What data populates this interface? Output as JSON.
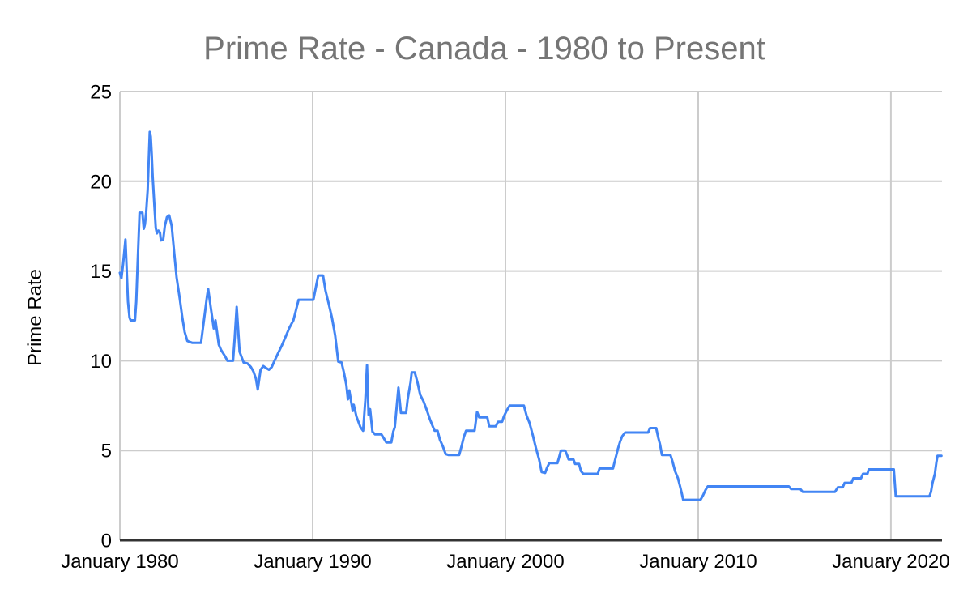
{
  "page": {
    "background": "#ffffff"
  },
  "colors": {
    "background": "#ffffff",
    "grid": "#cccccc",
    "axis": "#333333",
    "title_text": "#757575",
    "tick_text": "#000000",
    "line": "#4285f4"
  },
  "chart_data": {
    "type": "line",
    "title": "Prime Rate - Canada - 1980 to Present",
    "xlabel": "",
    "ylabel": "Prime Rate",
    "legend": "none",
    "grid": true,
    "xlim": [
      1980,
      2022.65
    ],
    "ylim": [
      0,
      25
    ],
    "x_ticks": [
      {
        "value": 1980,
        "label": "January 1980"
      },
      {
        "value": 1990,
        "label": "January 1990"
      },
      {
        "value": 2000,
        "label": "January 2000"
      },
      {
        "value": 2010,
        "label": "January 2010"
      },
      {
        "value": 2020,
        "label": "January 2020"
      }
    ],
    "y_ticks": [
      {
        "value": 0,
        "label": "0"
      },
      {
        "value": 5,
        "label": "5"
      },
      {
        "value": 10,
        "label": "10"
      },
      {
        "value": 15,
        "label": "15"
      },
      {
        "value": 20,
        "label": "20"
      },
      {
        "value": 25,
        "label": "25"
      }
    ],
    "series": [
      {
        "name": "Prime Rate",
        "color": "#4285f4",
        "points": [
          [
            1980.0,
            14.9
          ],
          [
            1980.08,
            14.6
          ],
          [
            1980.17,
            15.4
          ],
          [
            1980.29,
            16.75
          ],
          [
            1980.42,
            13.3
          ],
          [
            1980.5,
            12.4
          ],
          [
            1980.56,
            12.25
          ],
          [
            1980.78,
            12.25
          ],
          [
            1980.85,
            13.3
          ],
          [
            1980.92,
            15.4
          ],
          [
            1981.02,
            18.25
          ],
          [
            1981.17,
            18.25
          ],
          [
            1981.24,
            17.35
          ],
          [
            1981.3,
            17.6
          ],
          [
            1981.36,
            18.25
          ],
          [
            1981.44,
            19.5
          ],
          [
            1981.49,
            21.0
          ],
          [
            1981.55,
            22.75
          ],
          [
            1981.6,
            22.5
          ],
          [
            1981.65,
            21.5
          ],
          [
            1981.7,
            20.25
          ],
          [
            1981.78,
            18.8
          ],
          [
            1981.86,
            17.4
          ],
          [
            1981.92,
            17.1
          ],
          [
            1982.0,
            17.25
          ],
          [
            1982.08,
            17.15
          ],
          [
            1982.13,
            16.7
          ],
          [
            1982.25,
            16.75
          ],
          [
            1982.33,
            17.5
          ],
          [
            1982.44,
            18.0
          ],
          [
            1982.56,
            18.1
          ],
          [
            1982.69,
            17.5
          ],
          [
            1982.82,
            16.0
          ],
          [
            1982.94,
            14.65
          ],
          [
            1983.1,
            13.5
          ],
          [
            1983.24,
            12.4
          ],
          [
            1983.36,
            11.6
          ],
          [
            1983.5,
            11.1
          ],
          [
            1983.75,
            11.0
          ],
          [
            1984.21,
            11.0
          ],
          [
            1984.38,
            12.4
          ],
          [
            1984.52,
            13.6
          ],
          [
            1984.58,
            14.0
          ],
          [
            1984.71,
            13.0
          ],
          [
            1984.87,
            11.8
          ],
          [
            1984.96,
            12.25
          ],
          [
            1985.13,
            10.9
          ],
          [
            1985.25,
            10.6
          ],
          [
            1985.46,
            10.25
          ],
          [
            1985.58,
            10.0
          ],
          [
            1985.87,
            10.0
          ],
          [
            1985.96,
            11.3
          ],
          [
            1986.06,
            13.0
          ],
          [
            1986.21,
            10.5
          ],
          [
            1986.42,
            9.9
          ],
          [
            1986.62,
            9.85
          ],
          [
            1986.8,
            9.65
          ],
          [
            1986.93,
            9.4
          ],
          [
            1987.06,
            9.0
          ],
          [
            1987.15,
            8.4
          ],
          [
            1987.3,
            9.5
          ],
          [
            1987.44,
            9.7
          ],
          [
            1987.58,
            9.6
          ],
          [
            1987.73,
            9.5
          ],
          [
            1987.88,
            9.65
          ],
          [
            1988.0,
            9.95
          ],
          [
            1988.2,
            10.4
          ],
          [
            1988.4,
            10.85
          ],
          [
            1988.6,
            11.35
          ],
          [
            1988.8,
            11.85
          ],
          [
            1989.0,
            12.25
          ],
          [
            1989.12,
            12.75
          ],
          [
            1989.27,
            13.4
          ],
          [
            1990.04,
            13.4
          ],
          [
            1990.17,
            14.1
          ],
          [
            1990.29,
            14.75
          ],
          [
            1990.54,
            14.75
          ],
          [
            1990.67,
            13.9
          ],
          [
            1990.83,
            13.2
          ],
          [
            1991.0,
            12.4
          ],
          [
            1991.17,
            11.4
          ],
          [
            1991.33,
            9.95
          ],
          [
            1991.5,
            9.9
          ],
          [
            1991.63,
            9.3
          ],
          [
            1991.75,
            8.65
          ],
          [
            1991.83,
            7.85
          ],
          [
            1991.9,
            8.35
          ],
          [
            1992.0,
            7.7
          ],
          [
            1992.08,
            7.2
          ],
          [
            1992.13,
            7.55
          ],
          [
            1992.27,
            6.9
          ],
          [
            1992.48,
            6.3
          ],
          [
            1992.62,
            6.1
          ],
          [
            1992.73,
            7.8
          ],
          [
            1992.82,
            9.75
          ],
          [
            1992.9,
            7.0
          ],
          [
            1992.98,
            7.3
          ],
          [
            1993.1,
            6.05
          ],
          [
            1993.24,
            5.9
          ],
          [
            1993.57,
            5.9
          ],
          [
            1993.68,
            5.7
          ],
          [
            1993.82,
            5.45
          ],
          [
            1994.08,
            5.45
          ],
          [
            1994.18,
            6.05
          ],
          [
            1994.26,
            6.3
          ],
          [
            1994.45,
            8.5
          ],
          [
            1994.58,
            7.1
          ],
          [
            1994.85,
            7.1
          ],
          [
            1994.93,
            7.85
          ],
          [
            1995.08,
            8.8
          ],
          [
            1995.14,
            9.35
          ],
          [
            1995.3,
            9.35
          ],
          [
            1995.44,
            8.8
          ],
          [
            1995.58,
            8.1
          ],
          [
            1995.75,
            7.75
          ],
          [
            1995.92,
            7.25
          ],
          [
            1996.08,
            6.75
          ],
          [
            1996.25,
            6.3
          ],
          [
            1996.33,
            6.1
          ],
          [
            1996.48,
            6.1
          ],
          [
            1996.6,
            5.6
          ],
          [
            1996.75,
            5.25
          ],
          [
            1996.9,
            4.8
          ],
          [
            1997.04,
            4.75
          ],
          [
            1997.6,
            4.75
          ],
          [
            1997.73,
            5.25
          ],
          [
            1997.84,
            5.75
          ],
          [
            1997.96,
            6.1
          ],
          [
            1998.4,
            6.1
          ],
          [
            1998.53,
            7.15
          ],
          [
            1998.64,
            6.85
          ],
          [
            1999.06,
            6.85
          ],
          [
            1999.16,
            6.35
          ],
          [
            1999.5,
            6.35
          ],
          [
            1999.62,
            6.6
          ],
          [
            1999.83,
            6.6
          ],
          [
            1999.92,
            6.9
          ],
          [
            2000.08,
            7.25
          ],
          [
            2000.22,
            7.5
          ],
          [
            2000.96,
            7.5
          ],
          [
            2001.1,
            6.95
          ],
          [
            2001.25,
            6.55
          ],
          [
            2001.42,
            5.85
          ],
          [
            2001.58,
            5.15
          ],
          [
            2001.75,
            4.5
          ],
          [
            2001.88,
            3.8
          ],
          [
            2002.06,
            3.75
          ],
          [
            2002.16,
            4.05
          ],
          [
            2002.28,
            4.3
          ],
          [
            2002.7,
            4.3
          ],
          [
            2002.78,
            4.6
          ],
          [
            2002.88,
            5.0
          ],
          [
            2003.1,
            5.0
          ],
          [
            2003.2,
            4.75
          ],
          [
            2003.28,
            4.5
          ],
          [
            2003.53,
            4.5
          ],
          [
            2003.62,
            4.25
          ],
          [
            2003.82,
            4.25
          ],
          [
            2003.92,
            3.85
          ],
          [
            2004.04,
            3.7
          ],
          [
            2004.79,
            3.7
          ],
          [
            2004.88,
            4.0
          ],
          [
            2005.58,
            4.0
          ],
          [
            2005.65,
            4.3
          ],
          [
            2005.84,
            5.1
          ],
          [
            2005.95,
            5.5
          ],
          [
            2006.06,
            5.8
          ],
          [
            2006.21,
            6.0
          ],
          [
            2007.4,
            6.0
          ],
          [
            2007.5,
            6.25
          ],
          [
            2007.82,
            6.25
          ],
          [
            2007.92,
            5.75
          ],
          [
            2008.02,
            5.35
          ],
          [
            2008.12,
            4.75
          ],
          [
            2008.56,
            4.75
          ],
          [
            2008.68,
            4.35
          ],
          [
            2008.8,
            3.85
          ],
          [
            2008.95,
            3.45
          ],
          [
            2009.06,
            3.0
          ],
          [
            2009.14,
            2.65
          ],
          [
            2009.22,
            2.25
          ],
          [
            2010.12,
            2.25
          ],
          [
            2010.25,
            2.5
          ],
          [
            2010.38,
            2.8
          ],
          [
            2010.5,
            3.0
          ],
          [
            2014.7,
            3.0
          ],
          [
            2014.82,
            2.85
          ],
          [
            2015.3,
            2.85
          ],
          [
            2015.42,
            2.7
          ],
          [
            2017.1,
            2.7
          ],
          [
            2017.25,
            2.95
          ],
          [
            2017.5,
            2.95
          ],
          [
            2017.6,
            3.2
          ],
          [
            2017.95,
            3.2
          ],
          [
            2018.05,
            3.45
          ],
          [
            2018.45,
            3.45
          ],
          [
            2018.55,
            3.7
          ],
          [
            2018.78,
            3.7
          ],
          [
            2018.85,
            3.95
          ],
          [
            2020.15,
            3.95
          ],
          [
            2020.25,
            2.45
          ],
          [
            2022.0,
            2.45
          ],
          [
            2022.08,
            2.7
          ],
          [
            2022.16,
            3.2
          ],
          [
            2022.28,
            3.7
          ],
          [
            2022.36,
            4.35
          ],
          [
            2022.42,
            4.7
          ],
          [
            2022.62,
            4.7
          ]
        ]
      }
    ]
  }
}
